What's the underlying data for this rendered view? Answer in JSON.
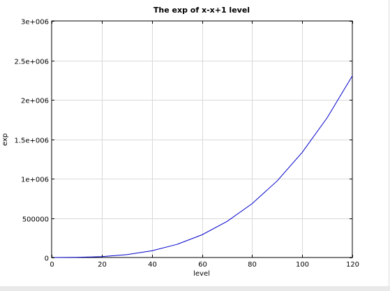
{
  "chart_data": {
    "type": "line",
    "title": "The exp of x-x+1 level",
    "xlabel": "level",
    "ylabel": "exp",
    "xlim": [
      0,
      120
    ],
    "ylim": [
      0,
      3000000
    ],
    "grid": true,
    "x_ticks": [
      0,
      20,
      40,
      60,
      80,
      100,
      120
    ],
    "x_tick_labels": [
      "0",
      "20",
      "40",
      "60",
      "80",
      "100",
      "120"
    ],
    "y_ticks": [
      0,
      500000,
      1000000,
      1500000,
      2000000,
      2500000,
      3000000
    ],
    "y_tick_labels": [
      "0",
      "500000",
      "1e+006",
      "1.5e+006",
      "2e+006",
      "2.5e+006",
      "3e+006"
    ],
    "series": [
      {
        "name": "exp",
        "color": "#0000cc",
        "x": [
          1,
          10,
          20,
          30,
          40,
          50,
          60,
          70,
          80,
          90,
          100,
          110,
          120
        ],
        "values": [
          0,
          1332,
          10665,
          35994,
          85320,
          166650,
          287970,
          457296,
          682620,
          971946,
          1333230,
          1774614,
          2303940
        ]
      }
    ]
  }
}
